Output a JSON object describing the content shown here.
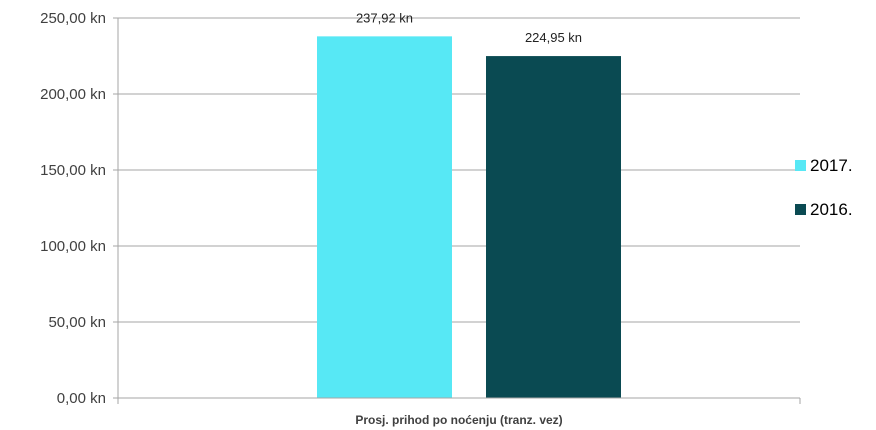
{
  "chart_data": {
    "type": "bar",
    "categories": [
      "Prosj. prihod po noćenju (tranz. vez)"
    ],
    "series": [
      {
        "name": "2017.",
        "values": [
          237.92
        ],
        "data_label": "237,92 kn",
        "color": "#57E8F5"
      },
      {
        "name": "2016.",
        "values": [
          224.95
        ],
        "data_label": "224,95 kn",
        "color": "#0A4A52"
      }
    ],
    "y_ticks": [
      {
        "value": 0,
        "label": "0,00 kn"
      },
      {
        "value": 50,
        "label": "50,00 kn"
      },
      {
        "value": 100,
        "label": "100,00 kn"
      },
      {
        "value": 150,
        "label": "150,00 kn"
      },
      {
        "value": 200,
        "label": "200,00 kn"
      },
      {
        "value": 250,
        "label": "250,00 kn"
      }
    ],
    "ylim": [
      0,
      250
    ],
    "grid": true,
    "legend_position": "right",
    "gridline_color": "#A6A6A6",
    "title": "",
    "xlabel": "",
    "ylabel": ""
  }
}
